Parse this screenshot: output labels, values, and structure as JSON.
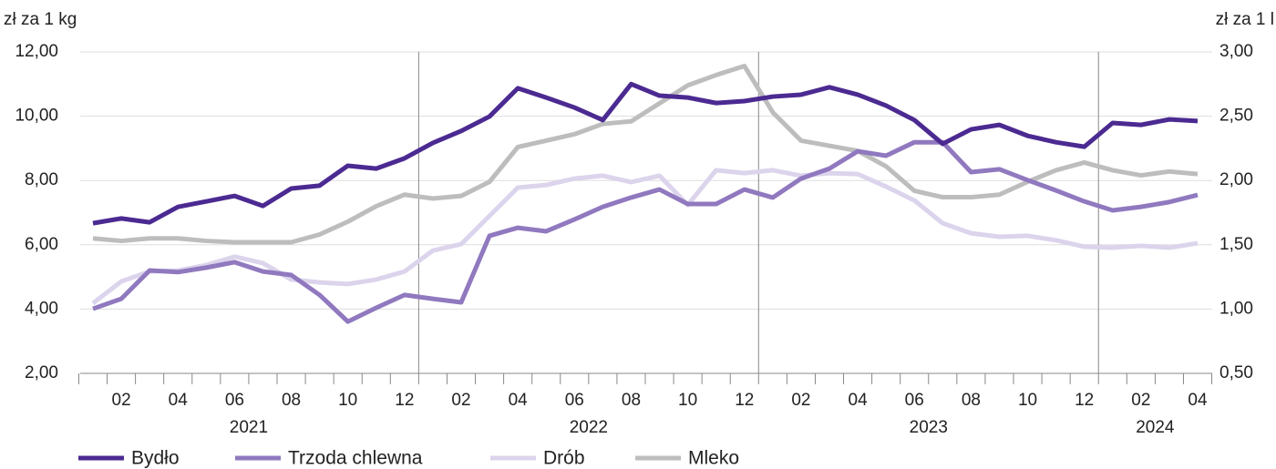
{
  "chart_data": {
    "type": "line",
    "y_label": "zł za 1 kg",
    "y2_label": "zł za 1 l",
    "categories": [
      null,
      "02",
      null,
      "04",
      null,
      "06",
      null,
      "08",
      null,
      "10",
      null,
      "12",
      null,
      "02",
      null,
      "04",
      null,
      "06",
      null,
      "08",
      null,
      "10",
      null,
      "12",
      null,
      "02",
      null,
      "04",
      null,
      "06",
      null,
      "08",
      null,
      "10",
      null,
      "12",
      null,
      "02",
      null,
      "04"
    ],
    "years": [
      "2021",
      "2022",
      "2023",
      "2024"
    ],
    "ylim": [
      2,
      12
    ],
    "yticks": [
      {
        "value": 2,
        "label": "2,00"
      },
      {
        "value": 4,
        "label": "4,00"
      },
      {
        "value": 6,
        "label": "6,00"
      },
      {
        "value": 8,
        "label": "8,00"
      },
      {
        "value": 10,
        "label": "10,00"
      },
      {
        "value": 12,
        "label": "12,00"
      }
    ],
    "y2lim": [
      0.5,
      3
    ],
    "y2ticks": [
      {
        "value": 0.5,
        "label": "0,50"
      },
      {
        "value": 1,
        "label": "1,00"
      },
      {
        "value": 1.5,
        "label": "1,50"
      },
      {
        "value": 2,
        "label": "2,00"
      },
      {
        "value": 2.5,
        "label": "2,50"
      },
      {
        "value": 3,
        "label": "3,00"
      }
    ],
    "grid": true,
    "legend": "bottom-left",
    "series": [
      {
        "name": "Bydło",
        "color": "#4b2a91",
        "values": [
          6.67,
          6.82,
          6.7,
          7.18,
          7.35,
          7.52,
          7.21,
          7.75,
          7.84,
          8.46,
          8.37,
          8.69,
          9.17,
          9.54,
          9.99,
          10.87,
          10.58,
          10.27,
          9.88,
          11.0,
          10.64,
          10.58,
          10.41,
          10.47,
          10.61,
          10.67,
          10.9,
          10.67,
          10.33,
          9.88,
          9.14,
          9.59,
          9.73,
          9.39,
          9.19,
          9.05,
          9.79,
          9.73,
          9.9,
          9.85
        ]
      },
      {
        "name": "Trzoda chlewna",
        "color": "#9079bf",
        "values": [
          4.01,
          4.32,
          5.2,
          5.15,
          5.29,
          5.46,
          5.17,
          5.06,
          4.44,
          3.61,
          4.04,
          4.44,
          4.32,
          4.21,
          6.28,
          6.53,
          6.42,
          6.79,
          7.18,
          7.47,
          7.72,
          7.27,
          7.27,
          7.72,
          7.47,
          8.06,
          8.37,
          8.91,
          8.77,
          9.19,
          9.19,
          8.26,
          8.35,
          8.01,
          7.69,
          7.35,
          7.07,
          7.18,
          7.33,
          7.55
        ]
      },
      {
        "name": "Drób",
        "color": "#dcd4ec",
        "values": [
          4.18,
          4.86,
          5.17,
          5.2,
          5.37,
          5.63,
          5.43,
          4.92,
          4.83,
          4.78,
          4.92,
          5.17,
          5.82,
          6.02,
          6.9,
          7.78,
          7.86,
          8.06,
          8.15,
          7.95,
          8.15,
          7.24,
          8.32,
          8.23,
          8.32,
          8.15,
          8.23,
          8.2,
          7.81,
          7.38,
          6.67,
          6.36,
          6.25,
          6.28,
          6.14,
          5.94,
          5.91,
          5.97,
          5.91,
          6.05
        ]
      },
      {
        "name": "Mleko",
        "color": "#bdbdbd",
        "axis": "y2",
        "values": [
          1.55,
          1.53,
          1.55,
          1.55,
          1.53,
          1.52,
          1.52,
          1.52,
          1.58,
          1.68,
          1.8,
          1.89,
          1.86,
          1.88,
          1.99,
          2.26,
          2.31,
          2.36,
          2.44,
          2.46,
          2.6,
          2.74,
          2.82,
          2.89,
          2.53,
          2.31,
          2.27,
          2.23,
          2.11,
          1.92,
          1.87,
          1.87,
          1.89,
          1.99,
          2.08,
          2.14,
          2.08,
          2.04,
          2.07,
          2.05
        ]
      }
    ]
  }
}
